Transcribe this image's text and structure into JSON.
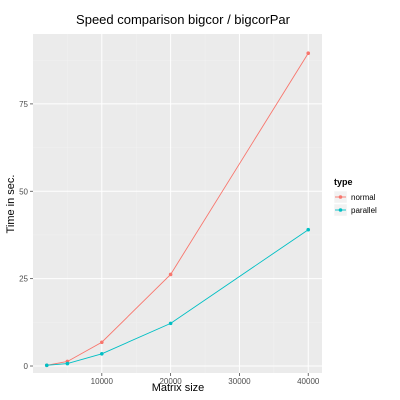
{
  "chart_data": {
    "type": "line",
    "title": "Speed comparison bigcor / bigcorPar",
    "xlabel": "Matrix size",
    "ylabel": "Time in sec.",
    "xlim": [
      0,
      42000
    ],
    "ylim": [
      -2,
      95
    ],
    "x_ticks": [
      10000,
      20000,
      30000,
      40000
    ],
    "x_tick_labels": [
      "10000",
      "20000",
      "30000",
      "40000"
    ],
    "y_ticks": [
      0,
      25,
      50,
      75
    ],
    "y_tick_labels": [
      "0",
      "25",
      "50",
      "75"
    ],
    "grid": true,
    "legend": {
      "title": "type",
      "placement": "right"
    },
    "series": [
      {
        "name": "normal",
        "color": "#F8766D",
        "x": [
          2000,
          5000,
          10000,
          20000,
          40000
        ],
        "values": [
          0.2,
          1.3,
          6.8,
          26.2,
          89.5
        ]
      },
      {
        "name": "parallel",
        "color": "#00BFC4",
        "x": [
          2000,
          5000,
          10000,
          20000,
          40000
        ],
        "values": [
          0.2,
          0.7,
          3.5,
          12.2,
          39.0
        ]
      }
    ],
    "panel_background": "#EBEBEB",
    "grid_major_color": "#FFFFFF",
    "grid_minor_color": "#F2F2F2"
  }
}
